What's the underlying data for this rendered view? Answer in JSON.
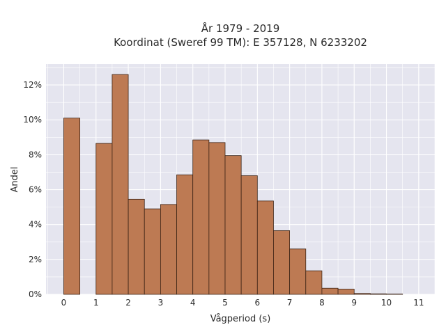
{
  "chart_data": {
    "type": "bar",
    "title_line1": "År 1979 - 2019",
    "title_line2": "Koordinat (Sweref 99 TM): E 357128, N 6233202",
    "xlabel": "Vågperiod (s)",
    "ylabel": "Andel",
    "bin_width": 0.5,
    "bins": [
      {
        "x0": 0.0,
        "value": 10.1
      },
      {
        "x0": 0.5,
        "value": 0.0
      },
      {
        "x0": 1.0,
        "value": 8.65
      },
      {
        "x0": 1.5,
        "value": 12.6
      },
      {
        "x0": 2.0,
        "value": 5.45
      },
      {
        "x0": 2.5,
        "value": 4.9
      },
      {
        "x0": 3.0,
        "value": 5.15
      },
      {
        "x0": 3.5,
        "value": 6.85
      },
      {
        "x0": 4.0,
        "value": 8.85
      },
      {
        "x0": 4.5,
        "value": 8.7
      },
      {
        "x0": 5.0,
        "value": 7.95
      },
      {
        "x0": 5.5,
        "value": 6.8
      },
      {
        "x0": 6.0,
        "value": 5.35
      },
      {
        "x0": 6.5,
        "value": 3.65
      },
      {
        "x0": 7.0,
        "value": 2.6
      },
      {
        "x0": 7.5,
        "value": 1.35
      },
      {
        "x0": 8.0,
        "value": 0.35
      },
      {
        "x0": 8.5,
        "value": 0.3
      },
      {
        "x0": 9.0,
        "value": 0.05
      },
      {
        "x0": 9.5,
        "value": 0.03
      },
      {
        "x0": 10.0,
        "value": 0.02
      },
      {
        "x0": 10.5,
        "value": 0.0
      }
    ],
    "xticks": [
      0,
      1,
      2,
      3,
      4,
      5,
      6,
      7,
      8,
      9,
      10,
      11
    ],
    "yticks": [
      0,
      2,
      4,
      6,
      8,
      10,
      12
    ],
    "ytick_suffix": "%",
    "xlim": [
      -0.55,
      11.5
    ],
    "ylim": [
      0,
      13.2
    ],
    "grid": true,
    "colors": {
      "bar_fill": "#bd7a53",
      "bar_stroke": "#3d2416",
      "plot_bg": "#e5e5ef",
      "grid": "#ffffff"
    }
  }
}
